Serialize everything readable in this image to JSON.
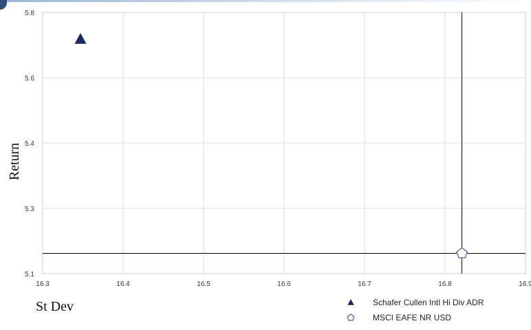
{
  "chart_data": {
    "type": "scatter",
    "xlabel": "St Dev",
    "ylabel": "Return",
    "xlim": [
      16.3,
      16.9
    ],
    "ylim": [
      5.1,
      5.8
    ],
    "x_ticks": [
      16.3,
      16.4,
      16.5,
      16.6,
      16.7,
      16.8,
      16.9
    ],
    "x_tick_labels": [
      "16.3",
      "16.4",
      "16.5",
      "16.6",
      "16.7",
      "16.8",
      "16.9"
    ],
    "y_ticks": [
      5.1,
      5.3,
      5.4,
      5.6,
      5.8
    ],
    "y_tick_labels": [
      "5.1",
      "5.3",
      "5.4",
      "5.6",
      "5.8"
    ],
    "grid": true,
    "legend_position": "bottom-right",
    "series": [
      {
        "name": "Schafer Cullen Intl Hi Div ADR",
        "marker": "triangle-icon",
        "color": "#1b2a5e",
        "points": [
          {
            "x": 16.347,
            "y": 5.718
          }
        ]
      },
      {
        "name": "MSCI EAFE NR USD",
        "marker": "pentagon-icon",
        "color": "#5b7aa8",
        "points": [
          {
            "x": 16.821,
            "y": 5.162
          }
        ]
      }
    ],
    "reference_lines": {
      "x": 16.821,
      "y": 5.162,
      "color": "#000000"
    }
  }
}
